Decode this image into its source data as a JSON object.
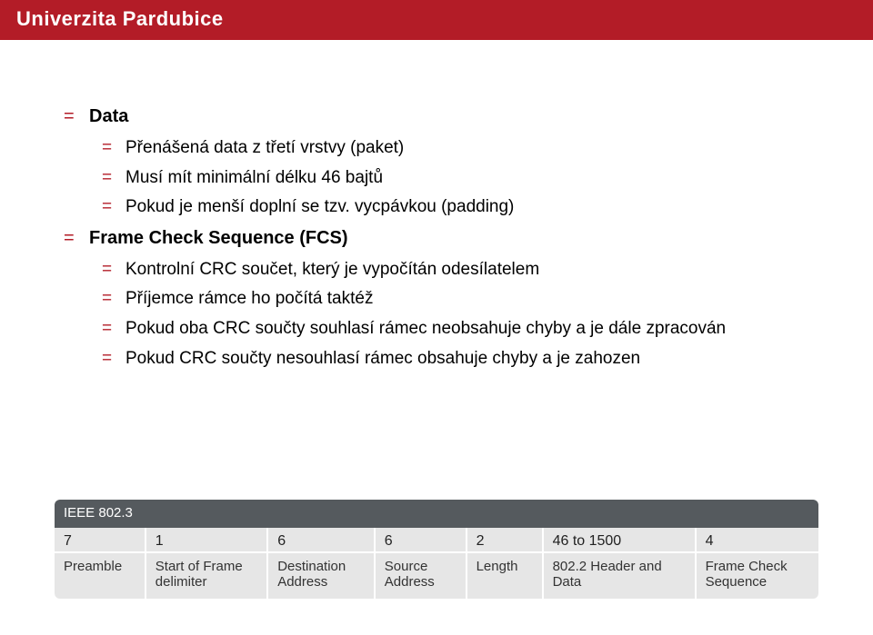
{
  "header": {
    "title": "Univerzita Pardubice"
  },
  "bullets": [
    {
      "level": 1,
      "bold": true,
      "text": "Data"
    },
    {
      "level": 2,
      "text": "Přenášená data z třetí vrstvy (paket)"
    },
    {
      "level": 2,
      "text": "Musí mít minimální délku 46 bajtů"
    },
    {
      "level": 2,
      "text": "Pokud je menší doplní se tzv. vycpávkou (padding)"
    },
    {
      "level": 1,
      "bold": true,
      "text": "Frame Check Sequence (FCS)"
    },
    {
      "level": 2,
      "text": "Kontrolní CRC součet, který je vypočítán odesílatelem"
    },
    {
      "level": 2,
      "text": "Příjemce rámce ho počítá taktéž"
    },
    {
      "level": 2,
      "text": "Pokud oba CRC součty souhlasí rámec neobsahuje chyby a je dále zpracován"
    },
    {
      "level": 2,
      "text": "Pokud CRC součty nesouhlasí rámec obsahuje chyby a je zahozen"
    }
  ],
  "frame_table": {
    "caption": "IEEE 802.3",
    "col_widths": [
      "12%",
      "16%",
      "14%",
      "12%",
      "10%",
      "20%",
      "16%"
    ],
    "sizes": [
      "7",
      "1",
      "6",
      "6",
      "2",
      "46 to 1500",
      "4"
    ],
    "labels": [
      "Preamble",
      "Start of Frame delimiter",
      "Destination Address",
      "Source Address",
      "Length",
      "802.2 Header and Data",
      "Frame Check Sequence"
    ],
    "header_bg": "#555a5e",
    "cell_bg": "#e6e6e6"
  }
}
